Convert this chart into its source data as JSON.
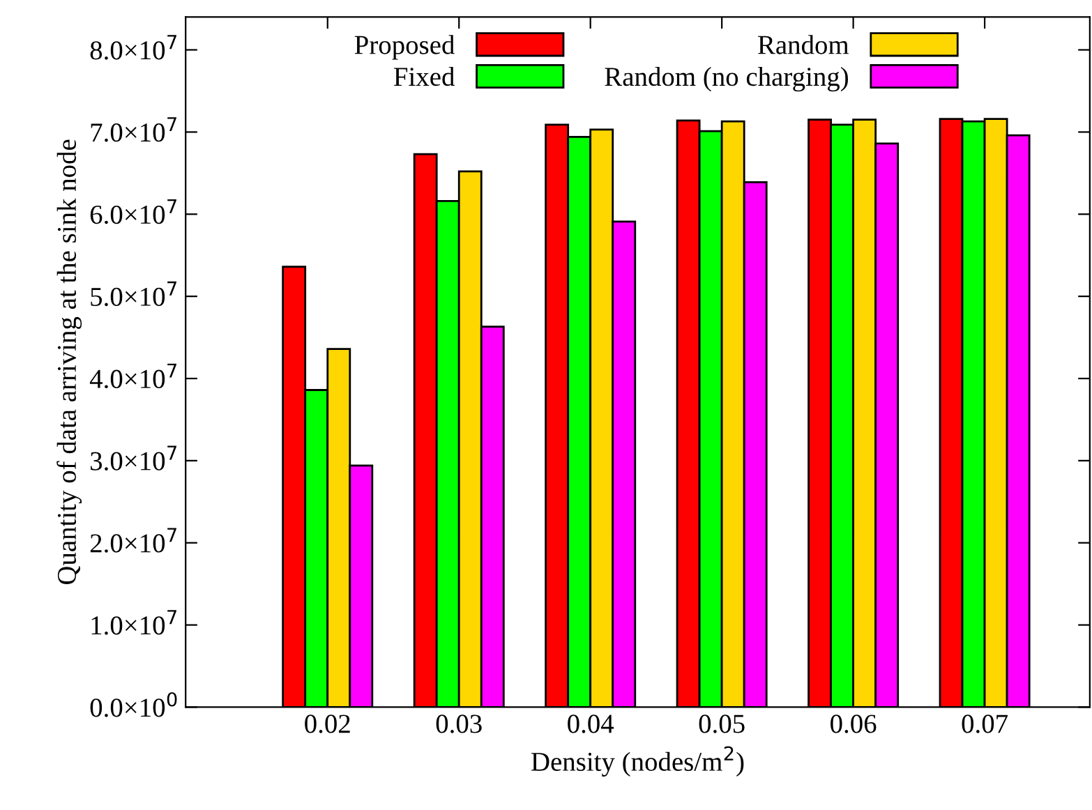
{
  "chart_data": {
    "type": "bar",
    "xlabel": "Density (nodes/m$^{2}$)",
    "ylabel": "Quantity of data arriving at the sink node",
    "categories": [
      "0.02",
      "0.03",
      "0.04",
      "0.05",
      "0.06",
      "0.07"
    ],
    "series": [
      {
        "name": "Proposed",
        "color": "#ff0000",
        "values": [
          53600000,
          67300000,
          70900000,
          71400000,
          71500000,
          71600000
        ]
      },
      {
        "name": "Fixed",
        "color": "#00ff00",
        "values": [
          38600000,
          61600000,
          69400000,
          70100000,
          70900000,
          71300000
        ]
      },
      {
        "name": "Random",
        "color": "#ffd700",
        "values": [
          43600000,
          65200000,
          70300000,
          71300000,
          71500000,
          71600000
        ]
      },
      {
        "name": "Random (no charging)",
        "color": "#ff00ff",
        "values": [
          29400000,
          46300000,
          59100000,
          63900000,
          68600000,
          69600000
        ]
      }
    ],
    "ylim": [
      0,
      84000000
    ],
    "yticks": [
      {
        "value": 0,
        "label": "0.0×10$^{0}$"
      },
      {
        "value": 10000000,
        "label": "1.0×10$^{7}$"
      },
      {
        "value": 20000000,
        "label": "2.0×10$^{7}$"
      },
      {
        "value": 30000000,
        "label": "3.0×10$^{7}$"
      },
      {
        "value": 40000000,
        "label": "4.0×10$^{7}$"
      },
      {
        "value": 50000000,
        "label": "5.0×10$^{7}$"
      },
      {
        "value": 60000000,
        "label": "6.0×10$^{7}$"
      },
      {
        "value": 70000000,
        "label": "7.0×10$^{7}$"
      },
      {
        "value": 80000000,
        "label": "8.0×10$^{7}$"
      }
    ],
    "grid": false,
    "legend": "top"
  }
}
